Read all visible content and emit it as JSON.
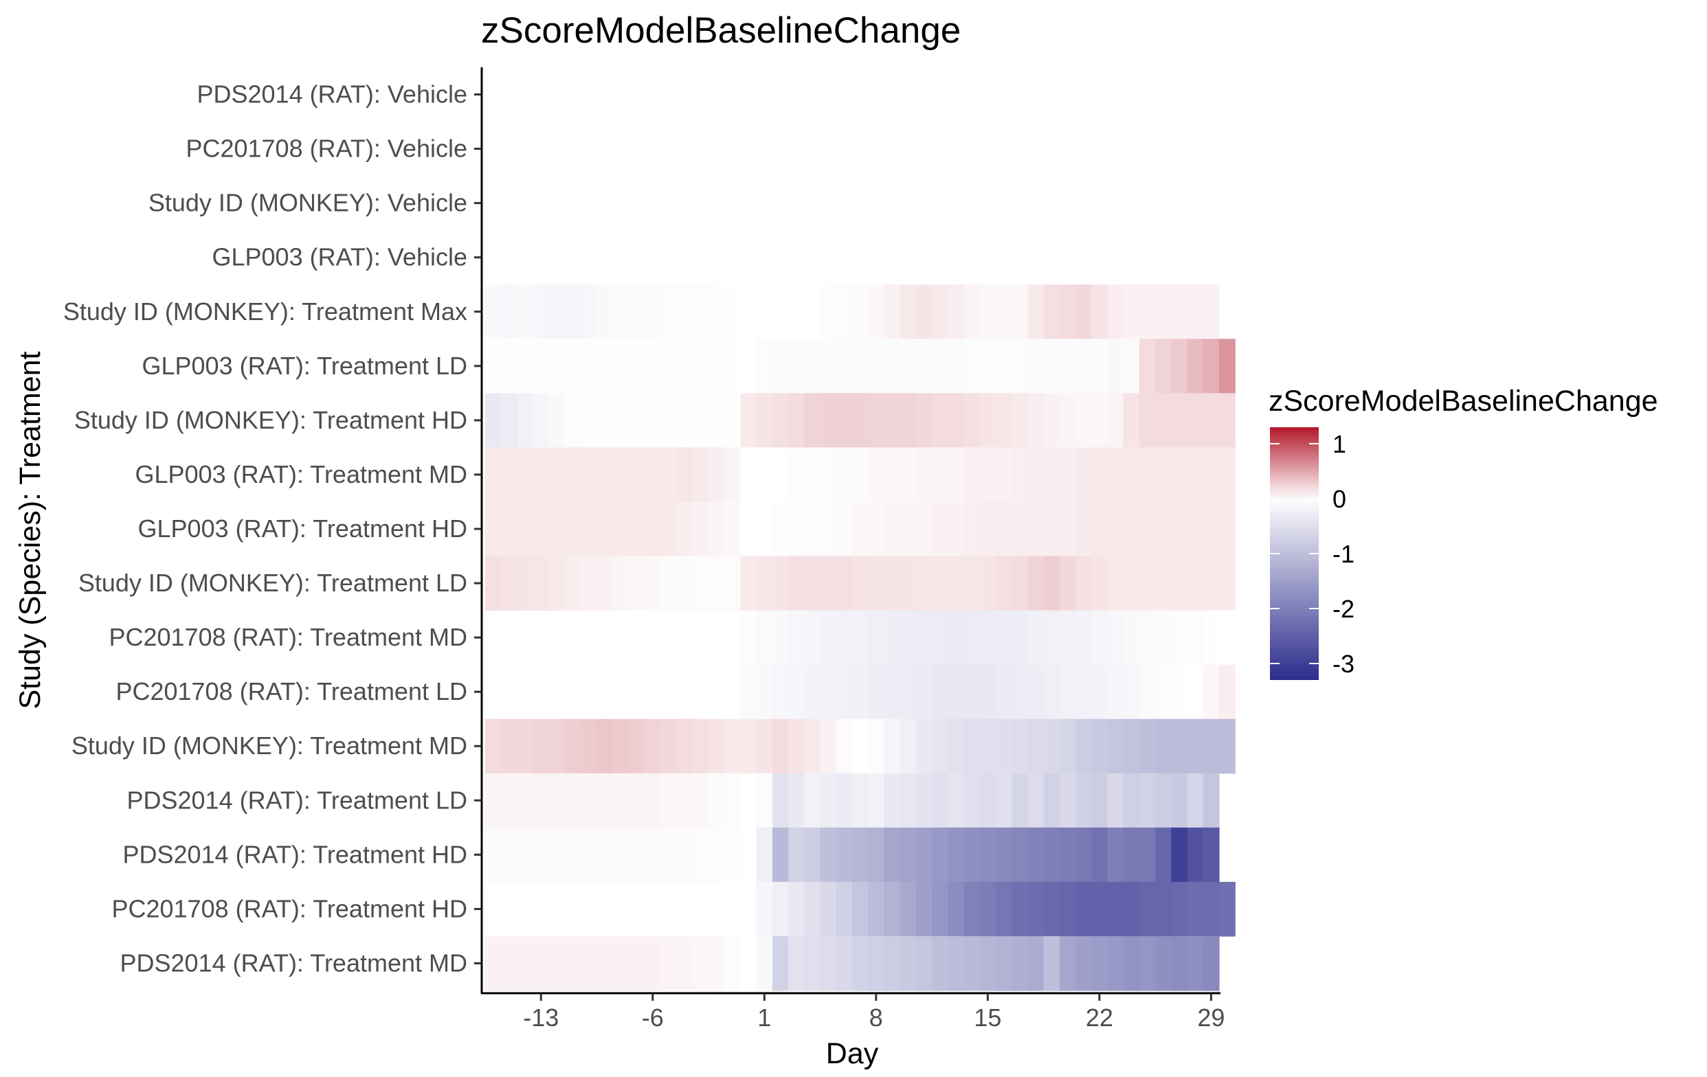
{
  "chart_data": {
    "type": "heatmap",
    "title": "zScoreModelBaselineChange",
    "xlabel": "Day",
    "ylabel": "Study (Species): Treatment",
    "x_ticks": [
      -13,
      -6,
      1,
      8,
      15,
      22,
      29
    ],
    "xlim": [
      -16.5,
      29.5
    ],
    "legend": {
      "title": "zScoreModelBaselineChange",
      "position": "right",
      "breaks": [
        1,
        0,
        -1,
        -2,
        -3
      ],
      "range": [
        -3.3,
        1.3
      ],
      "colors": {
        "high": "#b2182b",
        "mid": "#ffffff",
        "low": "#2c2c8c"
      }
    },
    "rows": [
      {
        "label": "PDS2014 (RAT): Vehicle",
        "segments": []
      },
      {
        "label": "PC201708 (RAT): Vehicle",
        "segments": []
      },
      {
        "label": "Study ID (MONKEY): Vehicle",
        "segments": []
      },
      {
        "label": "GLP003 (RAT): Vehicle",
        "segments": []
      },
      {
        "label": "Study ID (MONKEY): Treatment Max",
        "segments": [
          {
            "start": -16,
            "values": [
              -0.1,
              -0.12,
              -0.1,
              -0.12,
              -0.15,
              -0.15,
              -0.12,
              -0.1,
              -0.08,
              -0.08,
              -0.06,
              -0.05,
              -0.05,
              -0.04,
              -0.03,
              -0.02
            ]
          },
          {
            "start": 1,
            "values": [
              0,
              0,
              0,
              0,
              0.01,
              0.02,
              0.03,
              0.04,
              0.08,
              0.12,
              0.15,
              0.12,
              0.1,
              0.06,
              0.05,
              0.05,
              0.05,
              0.12,
              0.18,
              0.2,
              0.22,
              0.15,
              0.1,
              0.08,
              0.08,
              0.08,
              0.08,
              0.08,
              0.08
            ]
          }
        ]
      },
      {
        "label": "GLP003 (RAT): Treatment LD",
        "segments": [
          {
            "start": -16,
            "values": [
              -0.02,
              -0.02,
              -0.02,
              -0.02,
              -0.02,
              -0.02,
              -0.02,
              -0.02,
              -0.02,
              -0.02,
              -0.02,
              -0.03,
              -0.03,
              -0.03,
              -0.02,
              -0.02
            ]
          },
          {
            "start": 1,
            "values": [
              -0.05,
              -0.06,
              -0.06,
              -0.06,
              -0.06,
              -0.06,
              -0.06,
              -0.07,
              -0.07,
              -0.06,
              -0.06,
              -0.06,
              -0.06,
              -0.05,
              -0.05,
              -0.05,
              -0.05,
              -0.06,
              -0.06,
              -0.06,
              -0.07,
              -0.07,
              -0.1,
              -0.08,
              0.2,
              0.25,
              0.3,
              0.38,
              0.45,
              0.6
            ]
          }
        ]
      },
      {
        "label": "Study ID (MONKEY): Treatment HD",
        "segments": [
          {
            "start": -16,
            "values": [
              -0.35,
              -0.3,
              -0.22,
              -0.15,
              -0.1,
              -0.05,
              -0.03,
              -0.02,
              -0.02,
              -0.02,
              -0.02,
              -0.02,
              -0.02,
              -0.02,
              -0.02,
              -0.02
            ]
          },
          {
            "start": 0,
            "values": [
              0.12,
              0.15,
              0.18,
              0.2,
              0.25,
              0.26,
              0.26,
              0.26,
              0.25,
              0.25,
              0.24,
              0.22,
              0.2,
              0.2,
              0.18,
              0.15,
              0.14,
              0.12,
              0.1,
              0.08,
              0.06,
              0.05,
              0.05,
              0.06,
              0.15,
              0.2,
              0.2,
              0.2,
              0.2,
              0.2,
              0.2
            ]
          }
        ]
      },
      {
        "label": "GLP003 (RAT): Treatment MD",
        "segments": [
          {
            "start": -16,
            "values": [
              0.12,
              0.12,
              0.12,
              0.12,
              0.12,
              0.12,
              0.12,
              0.12,
              0.12,
              0.12,
              0.12,
              0.12,
              0.14,
              0.12,
              0.1,
              0.06,
              0.03,
              0.02
            ]
          },
          {
            "start": 0,
            "values": [
              0,
              0,
              0,
              0.01,
              0.02,
              0.02,
              0.03,
              0.03,
              0.04,
              0.05,
              0.05,
              0.06,
              0.06,
              0.07,
              0.08,
              0.08,
              0.08,
              0.09,
              0.1,
              0.1,
              0.1,
              0.11,
              0.12,
              0.12,
              0.12,
              0.12,
              0.12,
              0.12,
              0.12,
              0.12,
              0.12
            ]
          }
        ]
      },
      {
        "label": "GLP003 (RAT): Treatment HD",
        "segments": [
          {
            "start": -16,
            "values": [
              0.12,
              0.12,
              0.12,
              0.12,
              0.12,
              0.12,
              0.12,
              0.12,
              0.12,
              0.12,
              0.12,
              0.12,
              0.1,
              0.08,
              0.06,
              0.04,
              0.02
            ]
          },
          {
            "start": 0,
            "values": [
              0,
              0,
              0.01,
              0.01,
              0.02,
              0.02,
              0.03,
              0.04,
              0.05,
              0.06,
              0.06,
              0.07,
              0.08,
              0.08,
              0.09,
              0.1,
              0.1,
              0.1,
              0.1,
              0.1,
              0.1,
              0.11,
              0.12,
              0.12,
              0.12,
              0.12,
              0.12,
              0.12,
              0.12,
              0.12,
              0.12
            ]
          }
        ]
      },
      {
        "label": "Study ID (MONKEY): Treatment LD",
        "segments": [
          {
            "start": -16,
            "values": [
              0.18,
              0.16,
              0.15,
              0.14,
              0.12,
              0.1,
              0.08,
              0.08,
              0.06,
              0.05,
              0.04,
              0.03,
              0.03,
              0.02,
              0.02,
              0.02
            ]
          },
          {
            "start": 0,
            "values": [
              0.12,
              0.14,
              0.15,
              0.18,
              0.18,
              0.18,
              0.18,
              0.16,
              0.15,
              0.15,
              0.15,
              0.14,
              0.14,
              0.14,
              0.14,
              0.15,
              0.18,
              0.2,
              0.25,
              0.28,
              0.22,
              0.18,
              0.15,
              0.12,
              0.12,
              0.12,
              0.12,
              0.12,
              0.12,
              0.12,
              0.12
            ]
          }
        ]
      },
      {
        "label": "PC201708 (RAT): Treatment MD",
        "segments": [
          {
            "start": 0,
            "values": [
              -0.05,
              -0.08,
              -0.1,
              -0.12,
              -0.15,
              -0.18,
              -0.2,
              -0.22,
              -0.25,
              -0.26,
              -0.28,
              -0.3,
              -0.3,
              -0.32,
              -0.3,
              -0.3,
              -0.28,
              -0.26,
              -0.24,
              -0.22,
              -0.2,
              -0.18,
              -0.15,
              -0.12,
              -0.1,
              -0.08,
              -0.06,
              -0.05,
              -0.04,
              -0.02,
              0
            ]
          }
        ]
      },
      {
        "label": "PC201708 (RAT): Treatment LD",
        "segments": [
          {
            "start": 0,
            "values": [
              -0.08,
              -0.1,
              -0.12,
              -0.15,
              -0.18,
              -0.2,
              -0.22,
              -0.24,
              -0.26,
              -0.28,
              -0.3,
              -0.32,
              -0.34,
              -0.35,
              -0.36,
              -0.34,
              -0.32,
              -0.3,
              -0.28,
              -0.25,
              -0.22,
              -0.2,
              -0.18,
              -0.15,
              -0.12,
              -0.08,
              -0.04,
              -0.02,
              0,
              0.05,
              0.1
            ]
          }
        ]
      },
      {
        "label": "Study ID (MONKEY): Treatment MD",
        "segments": [
          {
            "start": -16,
            "values": [
              0.2,
              0.22,
              0.22,
              0.25,
              0.25,
              0.28,
              0.3,
              0.32,
              0.3,
              0.28,
              0.25,
              0.22,
              0.2,
              0.18,
              0.15,
              0.12,
              0.1
            ]
          },
          {
            "start": 0,
            "values": [
              0.12,
              0.15,
              0.2,
              0.15,
              0.12,
              0.08,
              0.02,
              0,
              -0.05,
              -0.15,
              -0.25,
              -0.35,
              -0.4,
              -0.45,
              -0.5,
              -0.5,
              -0.52,
              -0.55,
              -0.58,
              -0.6,
              -0.65,
              -0.8,
              -0.85,
              -0.9,
              -0.95,
              -1.0,
              -1.05,
              -1.05,
              -1.05,
              -1.05,
              -1.05
            ]
          }
        ]
      },
      {
        "label": "PDS2014 (RAT): Treatment LD",
        "segments": [
          {
            "start": -16,
            "values": [
              0.06,
              0.06,
              0.06,
              0.06,
              0.06,
              0.06,
              0.06,
              0.06,
              0.06,
              0.06,
              0.06,
              0.05,
              0.05,
              0.04,
              0.03,
              0.02
            ]
          },
          {
            "start": 1,
            "values": [
              -0.05,
              -0.45,
              -0.35,
              -0.2,
              -0.28,
              -0.32,
              -0.25,
              -0.2,
              -0.35,
              -0.38,
              -0.42,
              -0.48,
              -0.4,
              -0.5,
              -0.55,
              -0.5,
              -0.65,
              -0.55,
              -0.7,
              -0.6,
              -0.72,
              -0.8,
              -0.6,
              -0.75,
              -0.7,
              -0.8,
              -0.85,
              -0.65,
              -0.9
            ]
          }
        ]
      },
      {
        "label": "PDS2014 (RAT): Treatment HD",
        "segments": [
          {
            "start": -16,
            "values": [
              0.03,
              0.03,
              0.03,
              0.03,
              0.03,
              0.03,
              0.03,
              0.03,
              0.03,
              0.03,
              0.03,
              0.03,
              0.03,
              0.02,
              0.02,
              0.01
            ]
          },
          {
            "start": 1,
            "values": [
              -0.25,
              -1.1,
              -0.7,
              -0.8,
              -1.0,
              -1.1,
              -1.15,
              -1.2,
              -1.4,
              -1.45,
              -1.5,
              -1.6,
              -1.7,
              -1.75,
              -1.8,
              -1.85,
              -1.9,
              -1.95,
              -2.0,
              -2.05,
              -2.1,
              -2.2,
              -2.0,
              -2.1,
              -2.1,
              -2.4,
              -3.0,
              -2.7,
              -2.6
            ]
          }
        ]
      },
      {
        "label": "PC201708 (RAT): Treatment HD",
        "segments": [
          {
            "start": 0,
            "values": [
              0,
              -0.15,
              -0.25,
              -0.35,
              -0.5,
              -0.6,
              -0.75,
              -0.9,
              -1.05,
              -1.2,
              -1.35,
              -1.5,
              -1.65,
              -1.8,
              -1.95,
              -2.05,
              -2.15,
              -2.25,
              -2.3,
              -2.35,
              -2.4,
              -2.45,
              -2.45,
              -2.45,
              -2.45,
              -2.4,
              -2.4,
              -2.35,
              -2.3,
              -2.3,
              -2.25
            ]
          }
        ]
      },
      {
        "label": "PDS2014 (RAT): Treatment MD",
        "segments": [
          {
            "start": -16,
            "values": [
              0.08,
              0.08,
              0.08,
              0.08,
              0.08,
              0.08,
              0.08,
              0.08,
              0.08,
              0.08,
              0.08,
              0.07,
              0.06,
              0.05,
              0.04,
              0.02
            ]
          },
          {
            "start": 1,
            "values": [
              -0.1,
              -0.7,
              -0.45,
              -0.5,
              -0.55,
              -0.6,
              -0.7,
              -0.75,
              -0.8,
              -0.85,
              -0.9,
              -1.0,
              -1.05,
              -1.1,
              -1.15,
              -1.2,
              -1.25,
              -1.3,
              -1.0,
              -1.4,
              -1.5,
              -1.55,
              -1.6,
              -1.7,
              -1.65,
              -1.75,
              -1.8,
              -1.75,
              -1.85
            ]
          }
        ]
      }
    ]
  }
}
